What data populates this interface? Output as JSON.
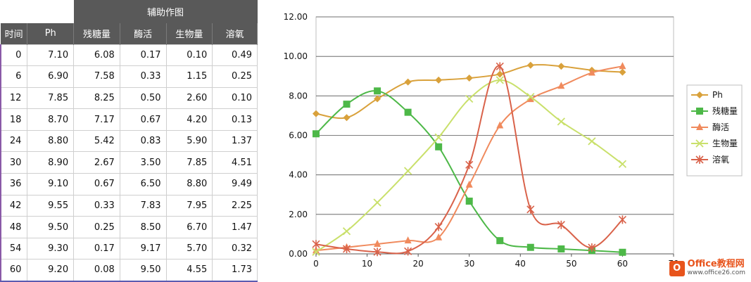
{
  "table": {
    "band_title": "辅助作图",
    "headers": [
      "时间",
      "Ph",
      "残糖量",
      "酶活",
      "生物量",
      "溶氧"
    ],
    "rows": [
      [
        "0",
        "7.10",
        "6.08",
        "0.17",
        "0.10",
        "0.49"
      ],
      [
        "6",
        "6.90",
        "7.58",
        "0.33",
        "1.15",
        "0.25"
      ],
      [
        "12",
        "7.85",
        "8.25",
        "0.50",
        "2.60",
        "0.10"
      ],
      [
        "18",
        "8.70",
        "7.17",
        "0.67",
        "4.20",
        "0.13"
      ],
      [
        "24",
        "8.80",
        "5.42",
        "0.83",
        "5.90",
        "1.37"
      ],
      [
        "30",
        "8.90",
        "2.67",
        "3.50",
        "7.85",
        "4.51"
      ],
      [
        "36",
        "9.10",
        "0.67",
        "6.50",
        "8.80",
        "9.49"
      ],
      [
        "42",
        "9.55",
        "0.33",
        "7.83",
        "7.95",
        "2.25"
      ],
      [
        "48",
        "9.50",
        "0.25",
        "8.50",
        "6.70",
        "1.47"
      ],
      [
        "54",
        "9.30",
        "0.17",
        "9.17",
        "5.70",
        "0.32"
      ],
      [
        "60",
        "9.20",
        "0.08",
        "9.50",
        "4.55",
        "1.73"
      ]
    ]
  },
  "chart_data": {
    "type": "scatter",
    "smooth": true,
    "x": [
      0,
      6,
      12,
      18,
      24,
      30,
      36,
      42,
      48,
      54,
      60
    ],
    "xlim": [
      0,
      70
    ],
    "ylim": [
      0,
      12
    ],
    "x_ticks": [
      "0",
      "10",
      "20",
      "30",
      "40",
      "50",
      "60",
      "70"
    ],
    "y_ticks": [
      "0.00",
      "2.00",
      "4.00",
      "6.00",
      "8.00",
      "10.00",
      "12.00"
    ],
    "grid": "horizontal",
    "legend_position": "right",
    "series": [
      {
        "name": "Ph",
        "color": "#D9A13B",
        "marker": "diamond",
        "values": [
          7.1,
          6.9,
          7.85,
          8.7,
          8.8,
          8.9,
          9.1,
          9.55,
          9.5,
          9.3,
          9.2
        ]
      },
      {
        "name": "残糖量",
        "color": "#4DB848",
        "marker": "square",
        "values": [
          6.08,
          7.58,
          8.25,
          7.17,
          5.42,
          2.67,
          0.67,
          0.33,
          0.25,
          0.17,
          0.08
        ]
      },
      {
        "name": "酶活",
        "color": "#F08A5D",
        "marker": "triangle",
        "values": [
          0.17,
          0.33,
          0.5,
          0.67,
          0.83,
          3.5,
          6.5,
          7.83,
          8.5,
          9.17,
          9.5
        ]
      },
      {
        "name": "生物量",
        "color": "#C9E06B",
        "marker": "x",
        "values": [
          0.1,
          1.15,
          2.6,
          4.2,
          5.9,
          7.85,
          8.8,
          7.95,
          6.7,
          5.7,
          4.55
        ]
      },
      {
        "name": "溶氧",
        "color": "#D9624A",
        "marker": "star",
        "values": [
          0.49,
          0.25,
          0.1,
          0.13,
          1.37,
          4.51,
          9.49,
          2.25,
          1.47,
          0.32,
          1.73
        ]
      }
    ]
  },
  "watermark": {
    "logo_letter": "O",
    "title": "Office教程网",
    "url": "www.office26.com"
  }
}
